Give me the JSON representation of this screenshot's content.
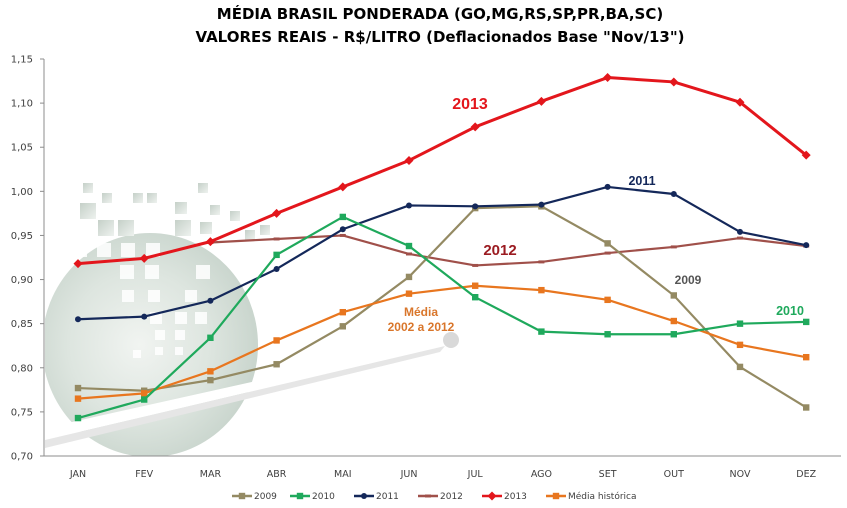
{
  "chart_data": {
    "type": "line",
    "title": [
      "MÉDIA BRASIL PONDERADA (GO,MG,RS,SP,PR,BA,SC)",
      "VALORES REAIS - R$/LITRO (Deflacionados Base \"Nov/13\")"
    ],
    "xlabel": "",
    "ylabel": "",
    "ylim": [
      0.7,
      1.15
    ],
    "yticks": [
      "0,70",
      "0,75",
      "0,80",
      "0,85",
      "0,90",
      "0,95",
      "1,00",
      "1,05",
      "1,10",
      "1,15"
    ],
    "ytick_values": [
      0.7,
      0.75,
      0.8,
      0.85,
      0.9,
      0.95,
      1.0,
      1.05,
      1.1,
      1.15
    ],
    "categories": [
      "JAN",
      "FEV",
      "MAR",
      "ABR",
      "MAI",
      "JUN",
      "JUL",
      "AGO",
      "SET",
      "OUT",
      "NOV",
      "DEZ"
    ],
    "grid": false,
    "legend_position": "bottom",
    "series": [
      {
        "name": "2009",
        "color": "#948A63",
        "marker": "square",
        "values": [
          0.777,
          0.774,
          0.786,
          0.804,
          0.847,
          0.903,
          0.981,
          0.983,
          0.941,
          0.882,
          0.801,
          0.755
        ]
      },
      {
        "name": "2010",
        "color": "#1FA95C",
        "marker": "square",
        "values": [
          0.743,
          0.764,
          0.834,
          0.928,
          0.971,
          0.938,
          0.88,
          0.841,
          0.838,
          0.838,
          0.85,
          0.852
        ]
      },
      {
        "name": "2011",
        "color": "#14285A",
        "marker": "dot",
        "values": [
          0.855,
          0.858,
          0.876,
          0.912,
          0.957,
          0.984,
          0.983,
          0.985,
          1.005,
          0.997,
          0.954,
          0.939
        ]
      },
      {
        "name": "2012",
        "color": "#A0504A",
        "marker": "dash",
        "values": [
          null,
          null,
          0.942,
          0.946,
          0.95,
          0.929,
          0.916,
          0.92,
          0.93,
          0.937,
          0.947,
          0.938
        ]
      },
      {
        "name": "2013",
        "color": "#E3161C",
        "marker": "diamond",
        "values": [
          0.918,
          0.924,
          0.943,
          0.975,
          1.005,
          1.035,
          1.073,
          1.102,
          1.129,
          1.124,
          1.101,
          1.041
        ]
      },
      {
        "name": "Média histórica",
        "color": "#E8761F",
        "marker": "square",
        "values": [
          0.765,
          0.771,
          0.796,
          0.831,
          0.863,
          0.884,
          0.893,
          0.888,
          0.877,
          0.853,
          0.826,
          0.812
        ]
      }
    ],
    "annotations": [
      {
        "text": "2013",
        "color": "#E3161C",
        "near": "2013 series, MAI-JUN"
      },
      {
        "text": "2011",
        "color": "#14285A",
        "near": "2011 series, SET-OUT"
      },
      {
        "text": "2012",
        "color": "#9B1B21",
        "near": "2012 series, JUL-AGO"
      },
      {
        "text": "2009",
        "color": "#555555",
        "near": "2009 series, OUT"
      },
      {
        "text": "2010",
        "color": "#1FA95C",
        "near": "2010 series, DEZ"
      },
      {
        "text": "Média",
        "color": "#D9762B",
        "near": "Média histórica, JUN"
      },
      {
        "text": "2002 a 2012",
        "color": "#D9762B",
        "near": "Média histórica, JUN"
      }
    ]
  }
}
